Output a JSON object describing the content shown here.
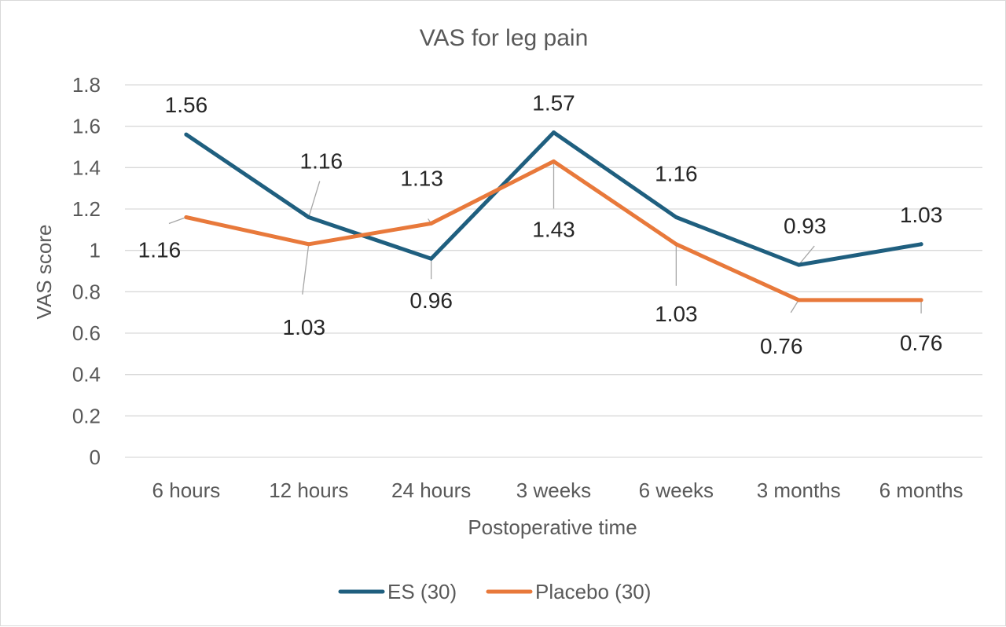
{
  "chart_data": {
    "type": "line",
    "title": "VAS for leg pain",
    "xlabel": "Postoperative time",
    "ylabel": "VAS score",
    "categories": [
      "6 hours",
      "12 hours",
      "24 hours",
      "3 weeks",
      "6 weeks",
      "3 months",
      "6 months"
    ],
    "ylim": [
      0,
      1.8
    ],
    "yticks": [
      "0",
      "0.2",
      "0.4",
      "0.6",
      "0.8",
      "1",
      "1.2",
      "1.4",
      "1.6",
      "1.8"
    ],
    "grid": true,
    "legend_position": "bottom",
    "series": [
      {
        "name": "ES (30)",
        "color": "#1f5f7f",
        "values": [
          1.56,
          1.16,
          0.96,
          1.57,
          1.16,
          0.93,
          1.03
        ],
        "labels": [
          "1.56",
          "1.16",
          "0.96",
          "1.57",
          "1.16",
          "0.93",
          "1.03"
        ]
      },
      {
        "name": "Placebo (30)",
        "color": "#e8793b",
        "values": [
          1.16,
          1.03,
          1.13,
          1.43,
          1.03,
          0.76,
          0.76
        ],
        "labels": [
          "1.16",
          "1.03",
          "1.13",
          "1.43",
          "1.03",
          "0.76",
          "0.76"
        ]
      }
    ]
  }
}
